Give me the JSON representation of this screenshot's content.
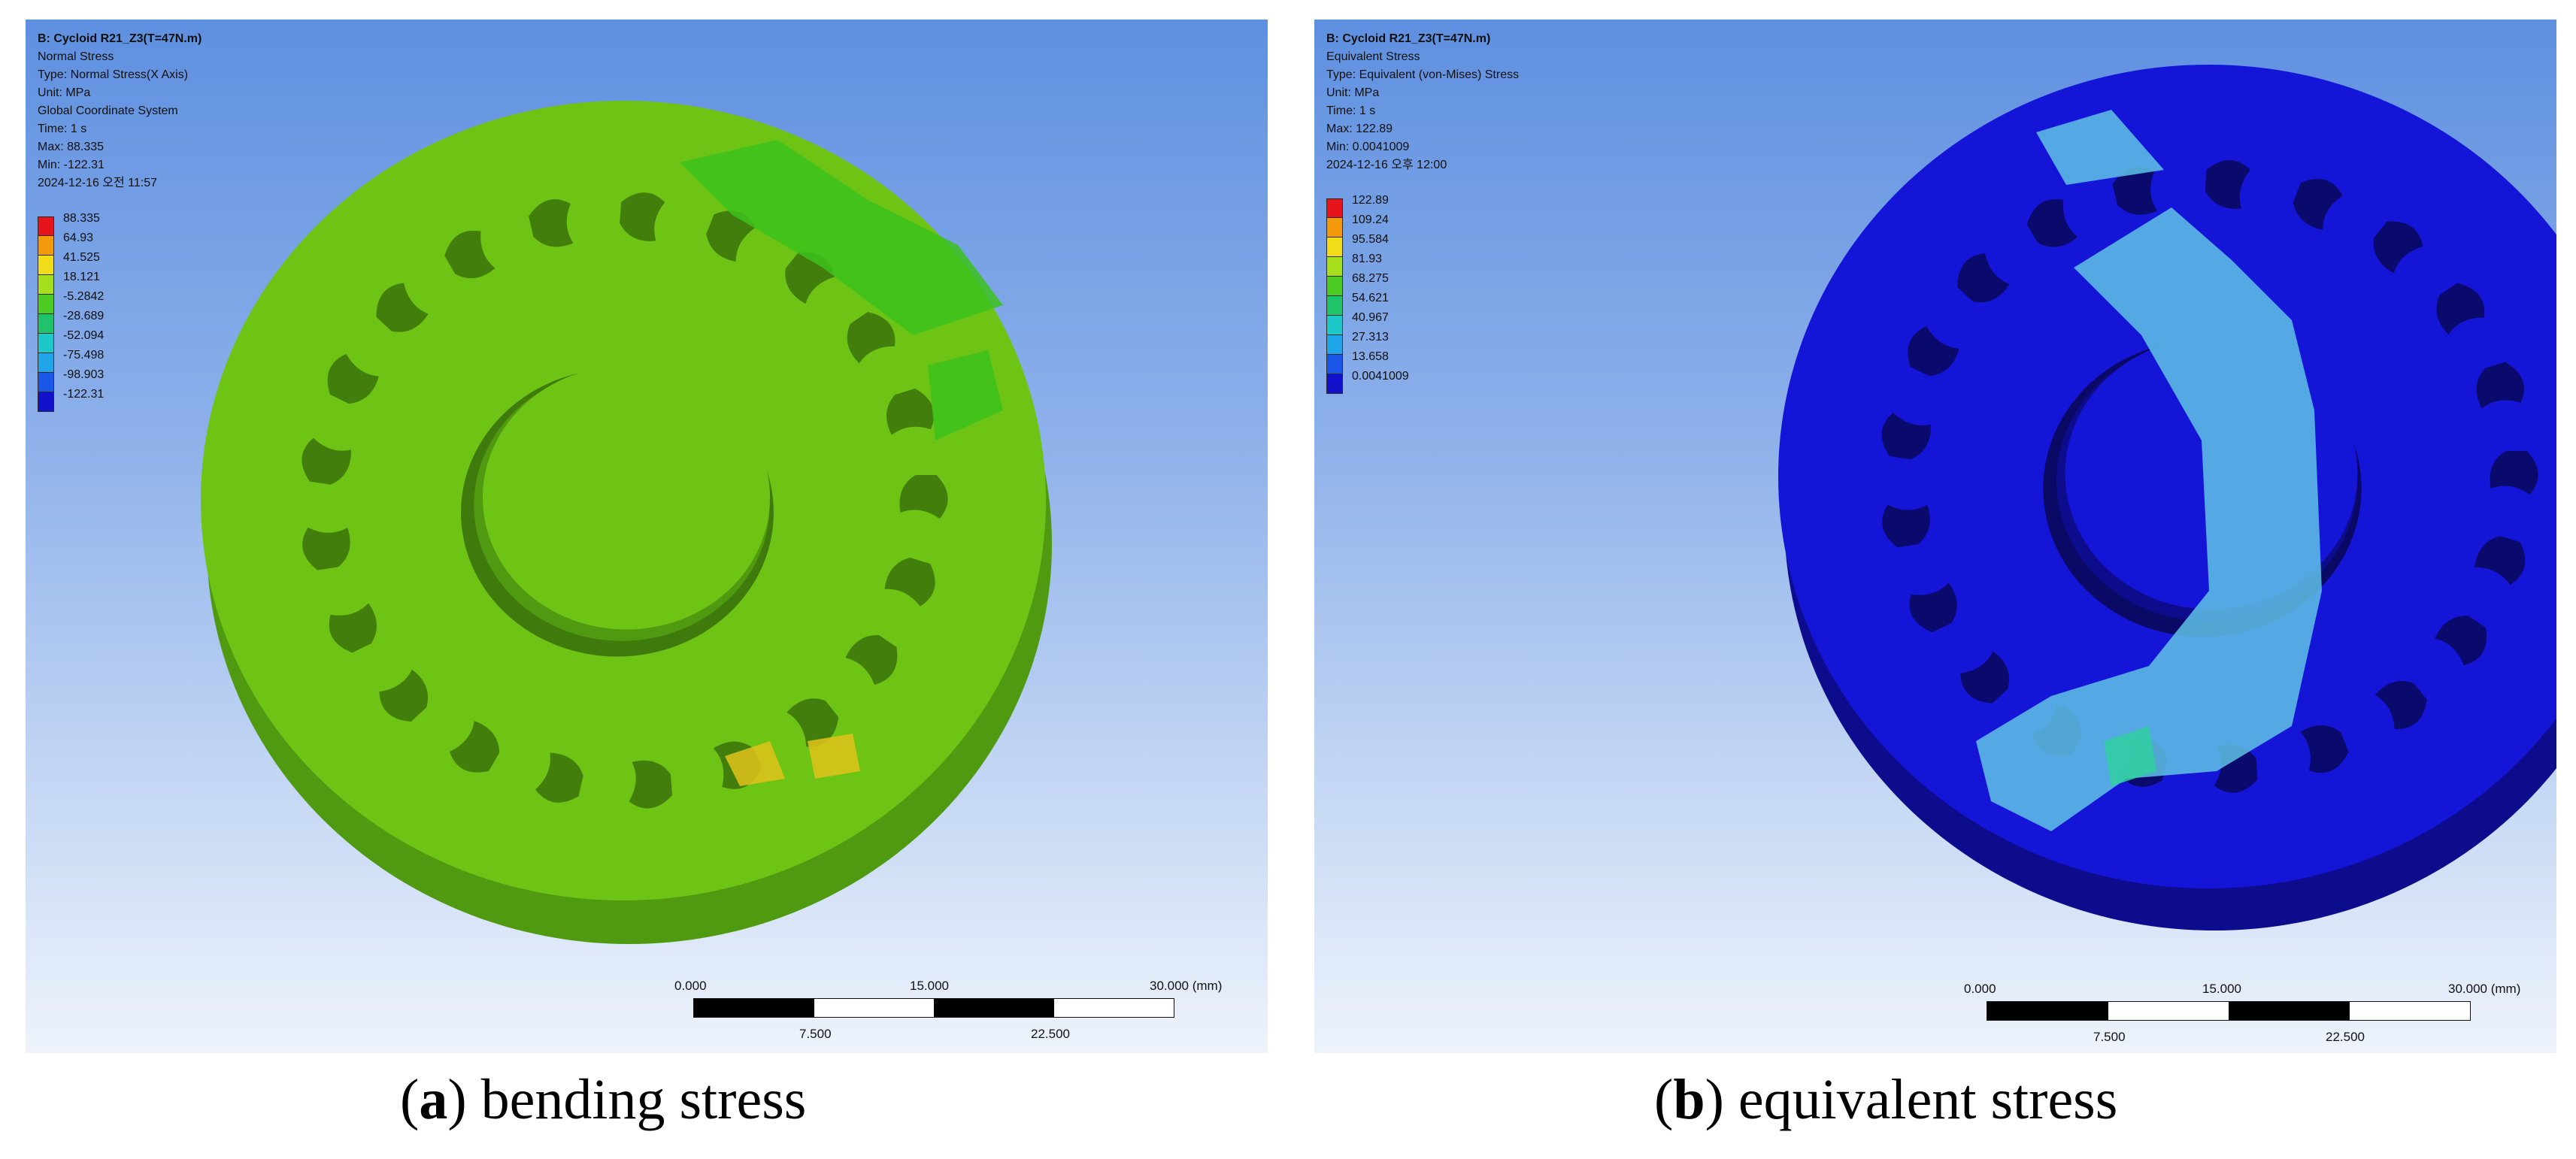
{
  "panel_a": {
    "info": {
      "title": "B: Cycloid R21_Z3(T=47N.m)",
      "lines": [
        "Normal Stress",
        "Type: Normal Stress(X Axis)",
        "Unit: MPa",
        "Global Coordinate System",
        "Time: 1 s",
        "Max: 88.335",
        "Min: -122.31",
        "2024-12-16 오전 11:57"
      ]
    },
    "legend": {
      "labels": [
        "88.335",
        "64.93",
        "41.525",
        "18.121",
        "-5.2842",
        "-28.689",
        "-52.094",
        "-75.498",
        "-98.903",
        "-122.31"
      ],
      "colors": [
        "#e8141c",
        "#f29a0c",
        "#f2dc18",
        "#a6e01c",
        "#4ccb22",
        "#1fc46a",
        "#1cc8c8",
        "#20a6e8",
        "#1a56e8",
        "#1212cc"
      ]
    },
    "colors": {
      "face": "#6ec414",
      "side": "#4f9a10",
      "hole": "#3f7a0c"
    },
    "scale": {
      "start": "0.000",
      "mid": "15.000",
      "end": "30.000 (mm)",
      "q1": "7.500",
      "q3": "22.500"
    },
    "caption": {
      "letter": "a",
      "text": "bending stress"
    }
  },
  "panel_b": {
    "info": {
      "title": "B: Cycloid R21_Z3(T=47N.m)",
      "lines": [
        "Equivalent Stress",
        "Type: Equivalent (von-Mises) Stress",
        "Unit: MPa",
        "Time: 1 s",
        "Max: 122.89",
        "Min: 0.0041009",
        "2024-12-16 오후 12:00"
      ]
    },
    "legend": {
      "labels": [
        "122.89",
        "109.24",
        "95.584",
        "81.93",
        "68.275",
        "54.621",
        "40.967",
        "27.313",
        "13.658",
        "0.0041009"
      ],
      "colors": [
        "#e8141c",
        "#f29a0c",
        "#f2dc18",
        "#a6e01c",
        "#4ccb22",
        "#1fc46a",
        "#1cc8c8",
        "#20a6e8",
        "#1a56e8",
        "#1212cc"
      ]
    },
    "colors": {
      "face": "#1515d8",
      "side": "#0c0c8c",
      "hole": "#0a0a66"
    },
    "scale": {
      "start": "0.000",
      "mid": "15.000",
      "end": "30.000 (mm)",
      "q1": "7.500",
      "q3": "22.500"
    },
    "caption": {
      "letter": "b",
      "text": "equivalent stress"
    }
  }
}
